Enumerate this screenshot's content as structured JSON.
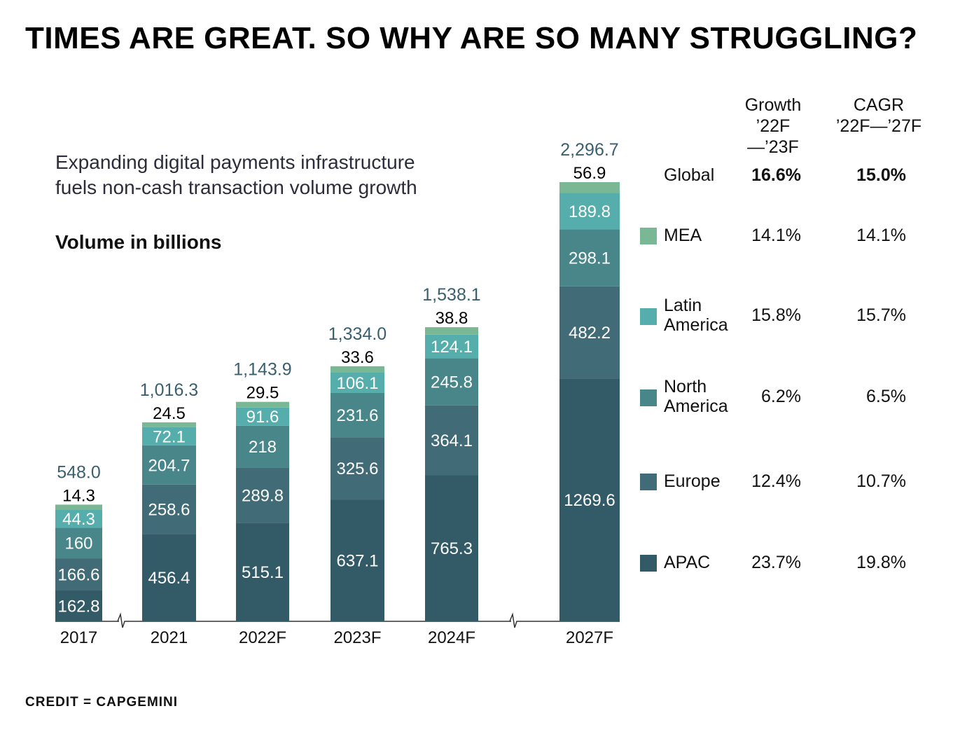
{
  "title": "TIMES ARE GREAT. SO WHY ARE SO MANY STRUGGLING?",
  "subtitle_lines": [
    "Expanding digital payments infrastructure",
    "fuels non-cash transaction volume growth"
  ],
  "unit_label": "Volume in billions",
  "credit": "CREDIT = CAPGEMINI",
  "table": {
    "headers": [
      {
        "line1": "Growth",
        "line2": "’22F—’23F"
      },
      {
        "line1": "CAGR",
        "line2": "’22F—’27F"
      }
    ],
    "rows": [
      {
        "name": "Global",
        "name_lines": [
          "Global"
        ],
        "growth": "16.6%",
        "cagr": "15.0%",
        "bold": true,
        "color": null
      },
      {
        "name": "MEA",
        "name_lines": [
          "MEA"
        ],
        "growth": "14.1%",
        "cagr": "14.1%",
        "bold": false,
        "color": "#7ab795"
      },
      {
        "name": "Latin America",
        "name_lines": [
          "Latin",
          "America"
        ],
        "growth": "15.8%",
        "cagr": "15.7%",
        "bold": false,
        "color": "#55aeab"
      },
      {
        "name": "North America",
        "name_lines": [
          "North",
          "America"
        ],
        "growth": "6.2%",
        "cagr": "6.5%",
        "bold": false,
        "color": "#48868a"
      },
      {
        "name": "Europe",
        "name_lines": [
          "Europe"
        ],
        "growth": "12.4%",
        "cagr": "10.7%",
        "bold": false,
        "color": "#416b76"
      },
      {
        "name": "APAC",
        "name_lines": [
          "APAC"
        ],
        "growth": "23.7%",
        "cagr": "19.8%",
        "bold": false,
        "color": "#325a67"
      }
    ]
  },
  "chart_data": {
    "type": "bar",
    "stacked": true,
    "title": "Expanding digital payments infrastructure fuels non-cash transaction volume growth",
    "ylabel": "Volume in billions",
    "xlabel": "",
    "categories": [
      "2017",
      "2021",
      "2022F",
      "2023F",
      "2024F",
      "2027F"
    ],
    "axis_breaks_after": [
      "2017",
      "2024F"
    ],
    "series": [
      {
        "name": "APAC",
        "color": "#325a67",
        "values": [
          162.8,
          456.4,
          515.1,
          637.1,
          765.3,
          1269.6
        ],
        "labels": [
          "162.8",
          "456.4",
          "515.1",
          "637.1",
          "765.3",
          "1269.6"
        ]
      },
      {
        "name": "Europe",
        "color": "#416b76",
        "values": [
          166.6,
          258.6,
          289.8,
          325.6,
          364.1,
          482.2
        ],
        "labels": [
          "166.6",
          "258.6",
          "289.8",
          "325.6",
          "364.1",
          "482.2"
        ]
      },
      {
        "name": "North America",
        "color": "#48868a",
        "values": [
          160,
          204.7,
          218,
          231.6,
          245.8,
          298.1
        ],
        "labels": [
          "160",
          "204.7",
          "218",
          "231.6",
          "245.8",
          "298.1"
        ]
      },
      {
        "name": "Latin America",
        "color": "#55aeab",
        "values": [
          44.3,
          72.1,
          91.6,
          106.1,
          124.1,
          189.8
        ],
        "labels": [
          "44.3",
          "72.1",
          "91.6",
          "106.1",
          "124.1",
          "189.8"
        ]
      },
      {
        "name": "MEA",
        "color": "#7ab795",
        "values": [
          14.3,
          24.5,
          29.5,
          33.6,
          38.8,
          56.9
        ],
        "labels": [
          "14.3",
          "24.5",
          "29.5",
          "33.6",
          "38.8",
          "56.9"
        ]
      }
    ],
    "totals": [
      548.0,
      1016.3,
      1143.9,
      1334.0,
      1538.1,
      2296.7
    ],
    "total_labels": [
      "548.0",
      "1,016.3",
      "1,143.9",
      "1,334.0",
      "1,538.1",
      "2,296.7"
    ],
    "ylim": [
      0,
      2296.7
    ],
    "grid": false,
    "legend": "right"
  }
}
